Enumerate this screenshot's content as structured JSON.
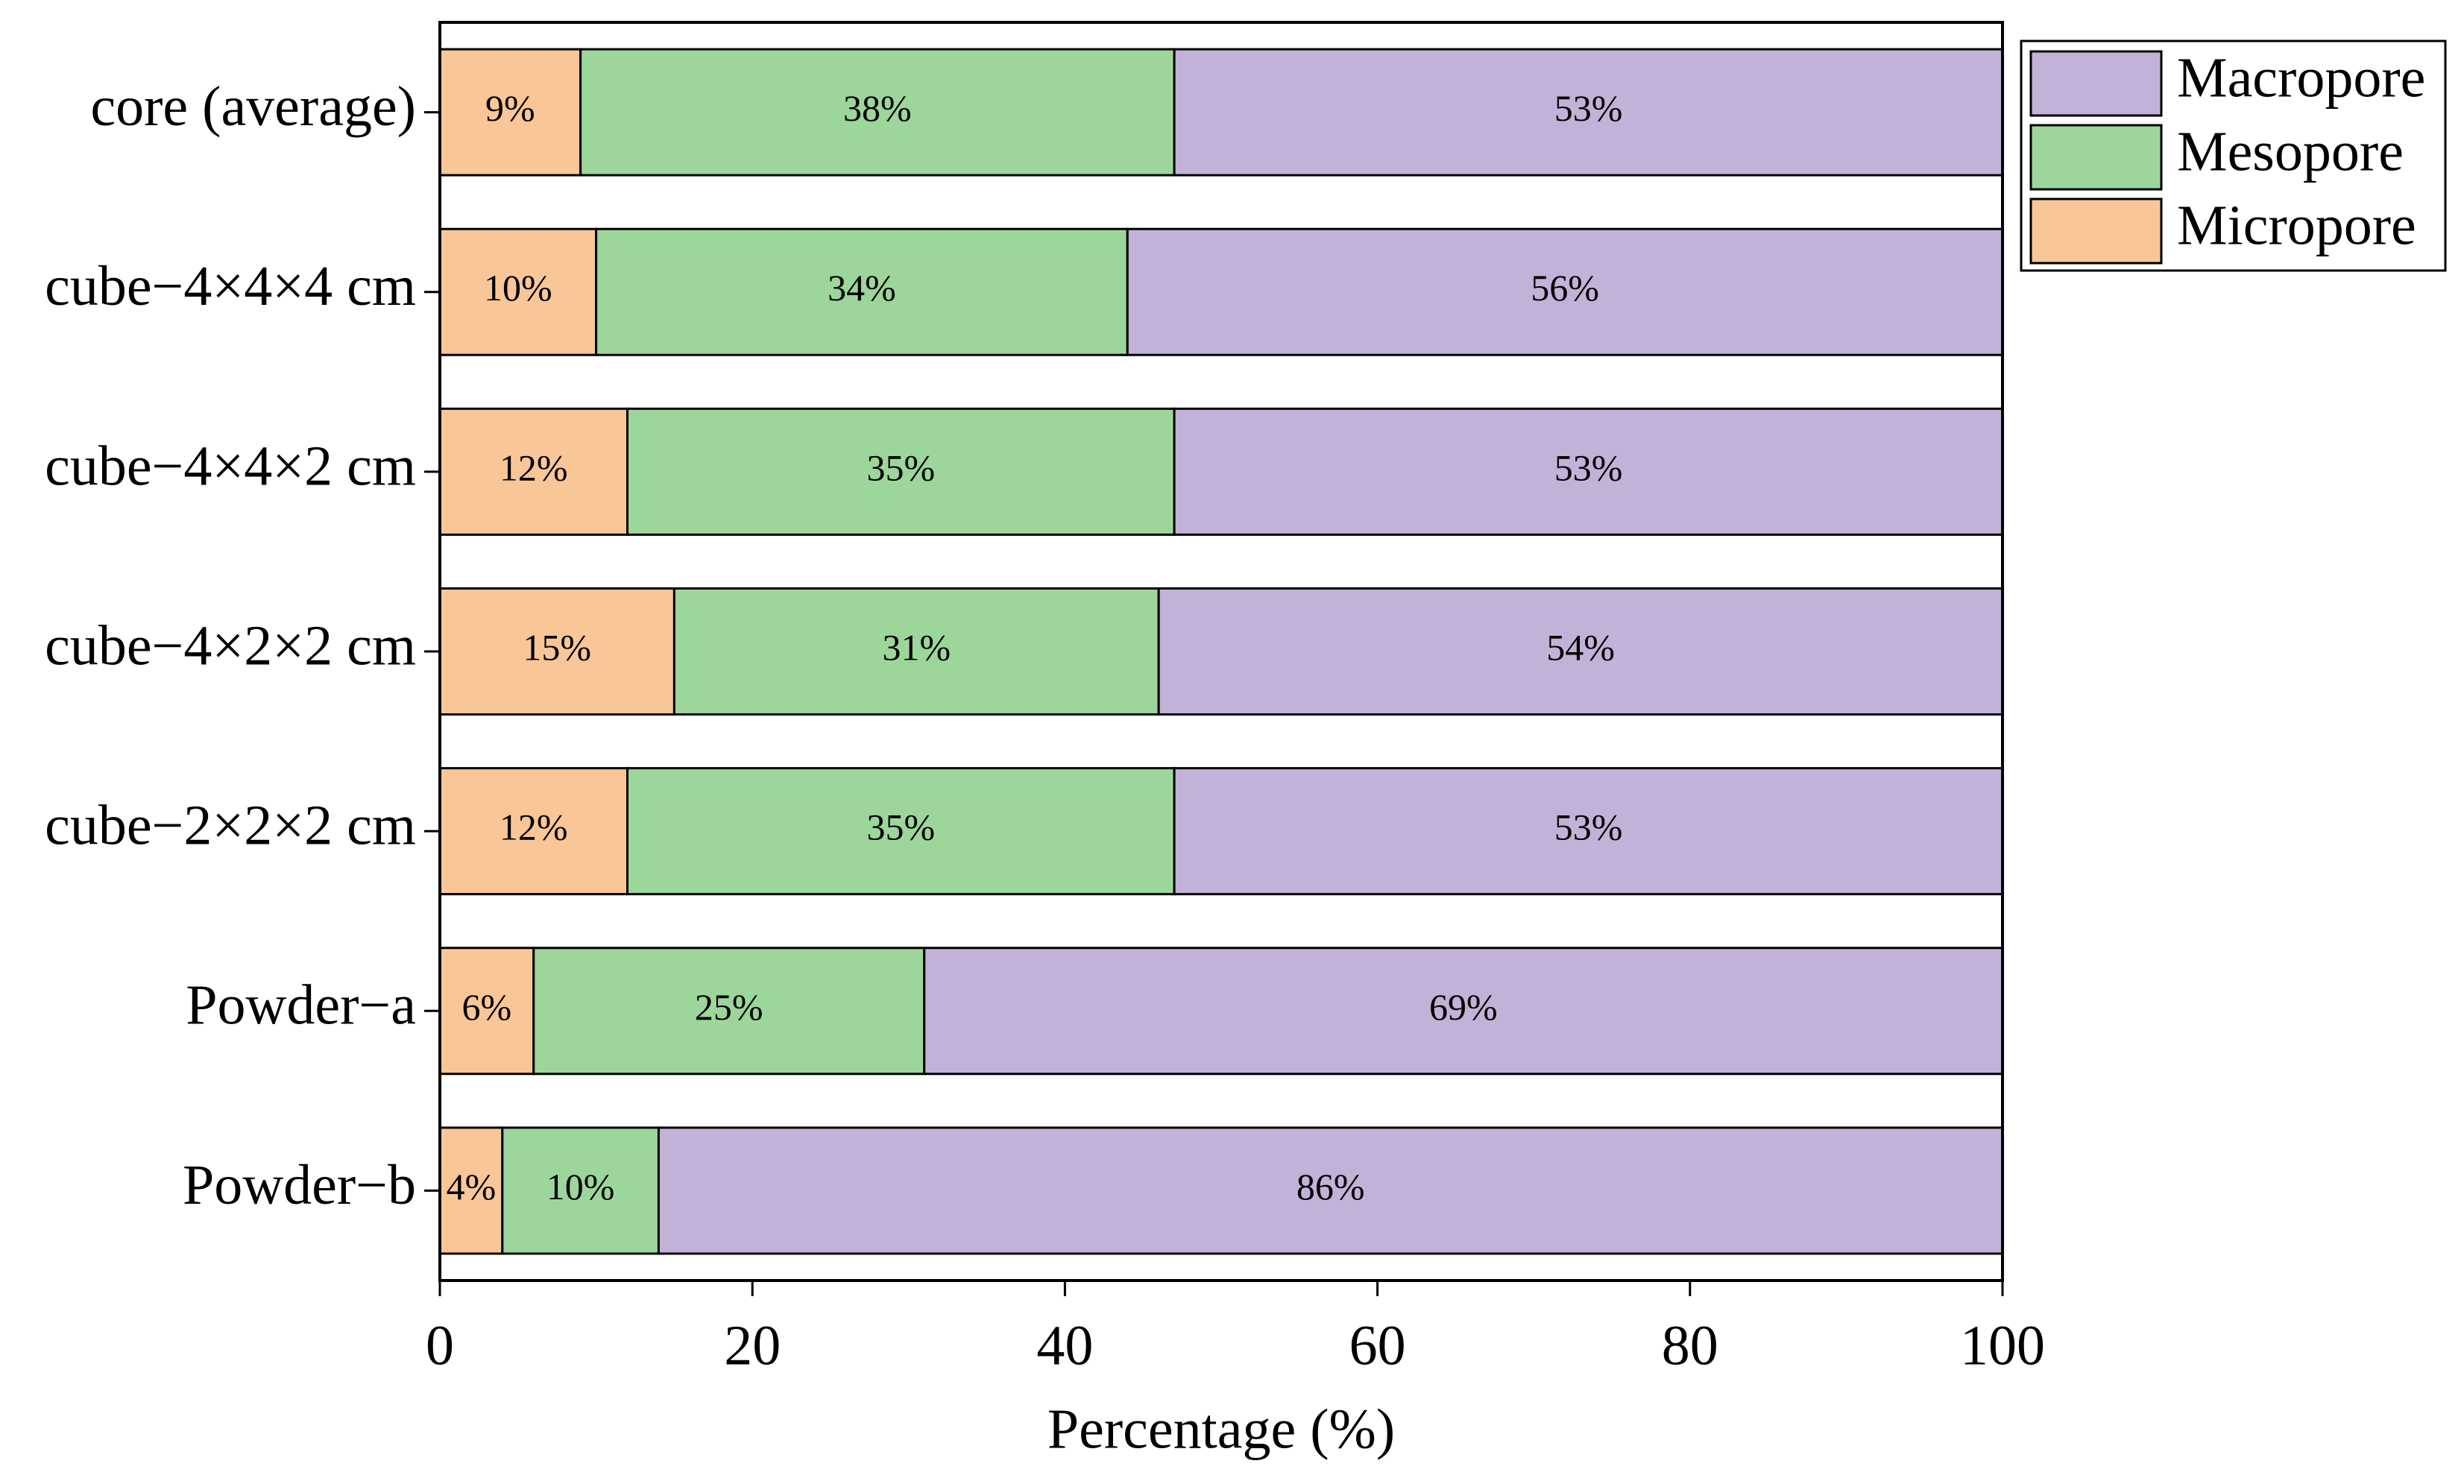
{
  "chart_data": {
    "type": "stacked-bar-horizontal",
    "xlabel": "Percentage (%)",
    "categories": [
      "core (average)",
      "cube−4×4×4 cm",
      "cube−4×4×2 cm",
      "cube−4×2×2 cm",
      "cube−2×2×2 cm",
      "Powder−a",
      "Powder−b"
    ],
    "series": [
      {
        "name": "Micropore",
        "color": "#f9c697",
        "values": [
          9,
          10,
          12,
          15,
          12,
          6,
          4
        ],
        "value_labels": [
          "9%",
          "10%",
          "12%",
          "15%",
          "12%",
          "6%",
          "4%"
        ]
      },
      {
        "name": "Mesopore",
        "color": "#9dd69b",
        "values": [
          38,
          34,
          35,
          31,
          35,
          25,
          10
        ],
        "value_labels": [
          "38%",
          "34%",
          "35%",
          "31%",
          "35%",
          "25%",
          "10%"
        ]
      },
      {
        "name": "Macropore",
        "color": "#c2b2d8",
        "values": [
          53,
          56,
          53,
          54,
          53,
          69,
          86
        ],
        "value_labels": [
          "53%",
          "56%",
          "53%",
          "54%",
          "53%",
          "69%",
          "86%"
        ]
      }
    ],
    "xlim": [
      0,
      100
    ],
    "xticks": [
      0,
      20,
      40,
      60,
      80,
      100
    ],
    "legend": "outside-upper-right",
    "grid": false
  }
}
